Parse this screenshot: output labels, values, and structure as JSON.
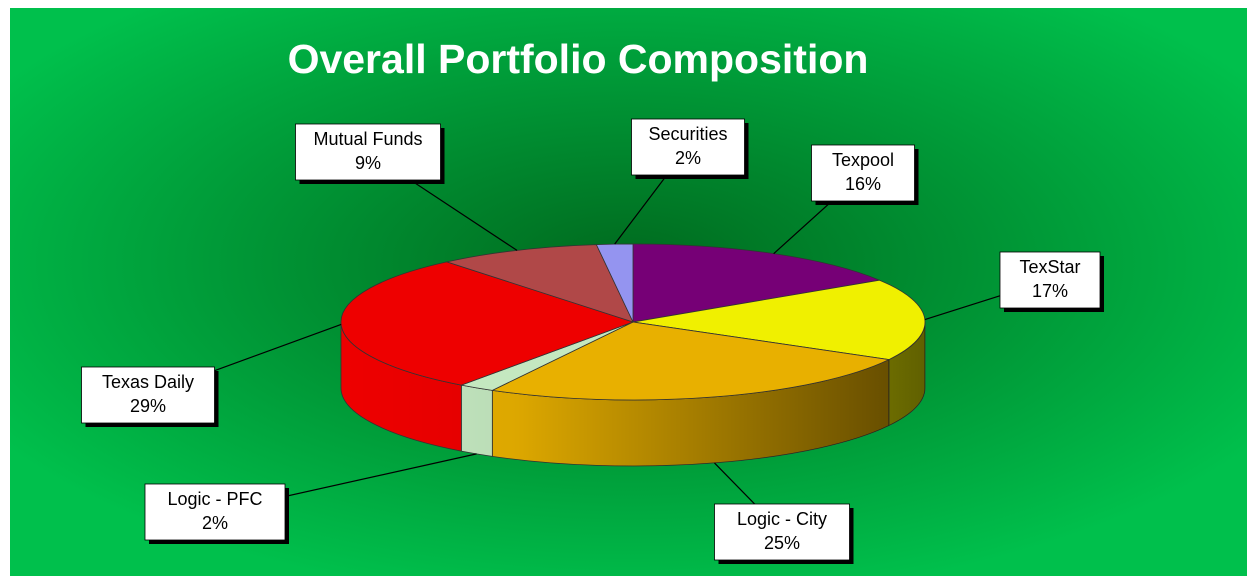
{
  "chart_data": {
    "type": "pie",
    "title": "Overall Portfolio Composition",
    "categories": [
      "Texpool",
      "TexStar",
      "Logic - City",
      "Logic - PFC",
      "Texas Daily",
      "Mutual Funds",
      "Securities"
    ],
    "values": [
      16,
      17,
      25,
      2,
      29,
      9,
      2
    ],
    "value_labels": [
      "16%",
      "17%",
      "25%",
      "2%",
      "29%",
      "9%",
      "2%"
    ],
    "colors": [
      "#760076",
      "#f0f000",
      "#e8b000",
      "#c4e8c0",
      "#ee0000",
      "#b04848",
      "#9494f0"
    ]
  }
}
